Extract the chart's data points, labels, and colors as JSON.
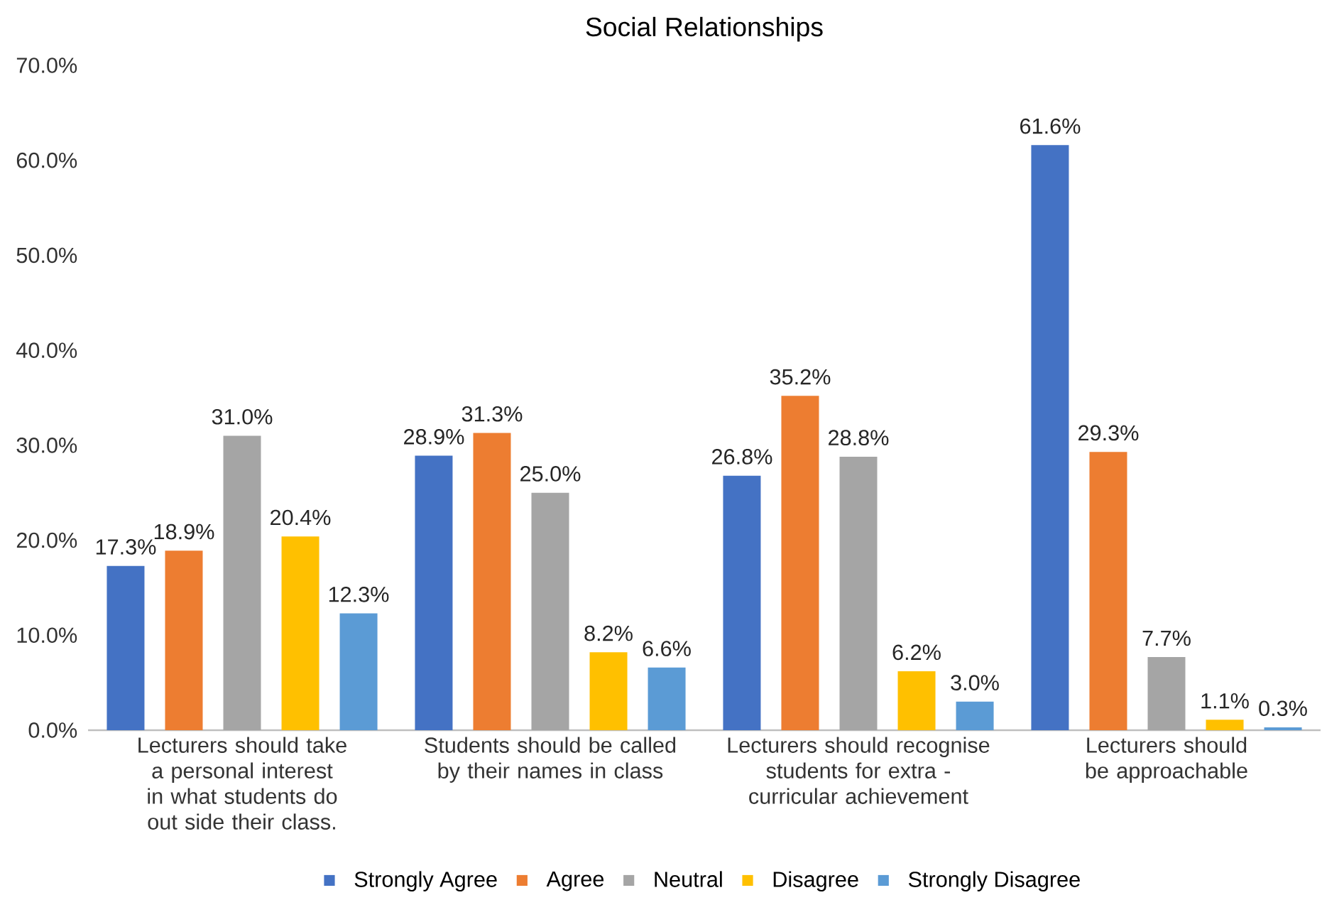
{
  "chart_data": {
    "type": "bar",
    "title": "Social Relationships",
    "categories": [
      "Lecturers should take a personal interest in what students do out side their class.",
      "Students should be called by their names in class",
      "Lecturers should recognise students for extra - curricular achievement",
      "Lecturers should be approachable"
    ],
    "series": [
      {
        "name": "Strongly Agree",
        "color": "#4472c4",
        "values": [
          17.3,
          28.9,
          26.8,
          61.6
        ],
        "value_labels": [
          "17.3%",
          "28.9%",
          "26.8%",
          "61.6%"
        ]
      },
      {
        "name": "Agree",
        "color": "#ed7d31",
        "values": [
          18.9,
          31.3,
          35.2,
          29.3
        ],
        "value_labels": [
          "18.9%",
          "31.3%",
          "35.2%",
          "29.3%"
        ]
      },
      {
        "name": "Neutral",
        "color": "#a5a5a5",
        "values": [
          31.0,
          25.0,
          28.8,
          7.7
        ],
        "value_labels": [
          "31.0%",
          "25.0%",
          "28.8%",
          "7.7%"
        ]
      },
      {
        "name": "Disagree",
        "color": "#ffc000",
        "values": [
          20.4,
          8.2,
          6.2,
          1.1
        ],
        "value_labels": [
          "20.4%",
          "8.2%",
          "6.2%",
          "1.1%"
        ]
      },
      {
        "name": "Strongly Disagree",
        "color": "#5b9bd5",
        "values": [
          12.3,
          6.6,
          3.0,
          0.3
        ],
        "value_labels": [
          "12.3%",
          "6.6%",
          "3.0%",
          "0.3%"
        ]
      }
    ],
    "ylim": [
      0,
      70
    ],
    "yticks": [
      {
        "value": 0,
        "label": "0.0%"
      },
      {
        "value": 10,
        "label": "10.0%"
      },
      {
        "value": 20,
        "label": "20.0%"
      },
      {
        "value": 30,
        "label": "30.0%"
      },
      {
        "value": 40,
        "label": "40.0%"
      },
      {
        "value": 50,
        "label": "50.0%"
      },
      {
        "value": 60,
        "label": "60.0%"
      },
      {
        "value": 70,
        "label": "70.0%"
      }
    ],
    "legend": "bottom",
    "grid": false
  }
}
